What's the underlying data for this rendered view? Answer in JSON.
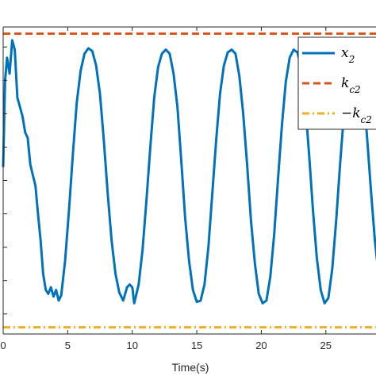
{
  "chart_data": {
    "type": "line",
    "xlabel": "Time(s)",
    "ylabel": "",
    "title": "",
    "xlim": [
      0,
      29.5
    ],
    "ylim": [
      -1.15,
      1.15
    ],
    "xticks": [
      0,
      5,
      10,
      15,
      20,
      25
    ],
    "xtick_labels": [
      "0",
      "5",
      "10",
      "15",
      "20",
      "25"
    ],
    "grid": false,
    "legend_placement": "top-right",
    "series": [
      {
        "name": "x_2",
        "legend_base": "x",
        "legend_sub": "2",
        "style": "solid",
        "color": "#0072BD",
        "x": [
          0,
          0.15,
          0.3,
          0.5,
          0.7,
          0.9,
          1.1,
          1.3,
          1.5,
          1.7,
          1.9,
          2.1,
          2.3,
          2.5,
          2.7,
          2.9,
          3.1,
          3.3,
          3.5,
          3.7,
          3.9,
          4.1,
          4.3,
          4.5,
          4.8,
          5.1,
          5.4,
          5.7,
          6.0,
          6.3,
          6.6,
          6.9,
          7.2,
          7.5,
          7.8,
          8.1,
          8.4,
          8.7,
          9.0,
          9.3,
          9.6,
          9.8,
          10.0,
          10.05,
          10.1,
          10.15,
          10.2,
          10.3,
          10.5,
          10.8,
          11.1,
          11.4,
          11.7,
          12.0,
          12.3,
          12.6,
          12.9,
          13.2,
          13.5,
          13.8,
          14.1,
          14.4,
          14.7,
          15.0,
          15.3,
          15.6,
          15.9,
          16.2,
          16.5,
          16.8,
          17.1,
          17.4,
          17.7,
          18.0,
          18.3,
          18.6,
          18.9,
          19.2,
          19.5,
          19.8,
          20.1,
          20.4,
          20.7,
          21.0,
          21.3,
          21.6,
          21.9,
          22.2,
          22.5,
          22.8,
          23.1,
          23.4,
          23.7,
          24.0,
          24.3,
          24.6,
          24.9,
          25.2,
          25.5,
          25.8,
          26.1,
          26.4,
          26.7,
          27.0,
          27.3,
          27.6,
          27.9,
          28.2,
          28.5,
          28.8,
          29.1,
          29.4
        ],
        "y": [
          0.1,
          0.75,
          0.92,
          0.8,
          1.05,
          0.98,
          0.62,
          0.55,
          0.48,
          0.36,
          0.32,
          0.12,
          0.04,
          -0.04,
          -0.25,
          -0.45,
          -0.7,
          -0.82,
          -0.85,
          -0.8,
          -0.87,
          -0.82,
          -0.9,
          -0.86,
          -0.6,
          -0.22,
          0.2,
          0.58,
          0.82,
          0.95,
          0.99,
          0.97,
          0.86,
          0.65,
          0.3,
          -0.1,
          -0.45,
          -0.7,
          -0.84,
          -0.9,
          -0.8,
          -0.78,
          -0.8,
          -0.83,
          -0.88,
          -0.92,
          -0.9,
          -0.86,
          -0.78,
          -0.52,
          -0.15,
          0.25,
          0.62,
          0.85,
          0.95,
          0.98,
          0.95,
          0.8,
          0.55,
          0.15,
          -0.28,
          -0.6,
          -0.82,
          -0.91,
          -0.9,
          -0.78,
          -0.5,
          -0.1,
          0.3,
          0.65,
          0.86,
          0.96,
          0.98,
          0.95,
          0.78,
          0.5,
          0.12,
          -0.3,
          -0.62,
          -0.85,
          -0.92,
          -0.9,
          -0.72,
          -0.4,
          0.02,
          0.42,
          0.74,
          0.92,
          0.98,
          0.96,
          0.84,
          0.58,
          0.2,
          -0.22,
          -0.58,
          -0.82,
          -0.92,
          -0.88,
          -0.66,
          -0.3,
          0.12,
          0.5,
          0.8,
          0.95,
          0.98,
          0.9,
          0.68,
          0.32,
          -0.08,
          -0.45,
          -0.72,
          -0.82
        ]
      },
      {
        "name": "k_c2",
        "legend_base": "k",
        "legend_sub": "c2",
        "style": "dashed",
        "color": "#D95319",
        "x": [
          0,
          29.5
        ],
        "y": [
          1.1,
          1.1
        ]
      },
      {
        "name": "-k_c2",
        "legend_base": "−k",
        "legend_sub": "c2",
        "style": "dashdot",
        "color": "#EDB120",
        "x": [
          0,
          29.5
        ],
        "y": [
          -1.1,
          -1.1
        ]
      }
    ]
  }
}
